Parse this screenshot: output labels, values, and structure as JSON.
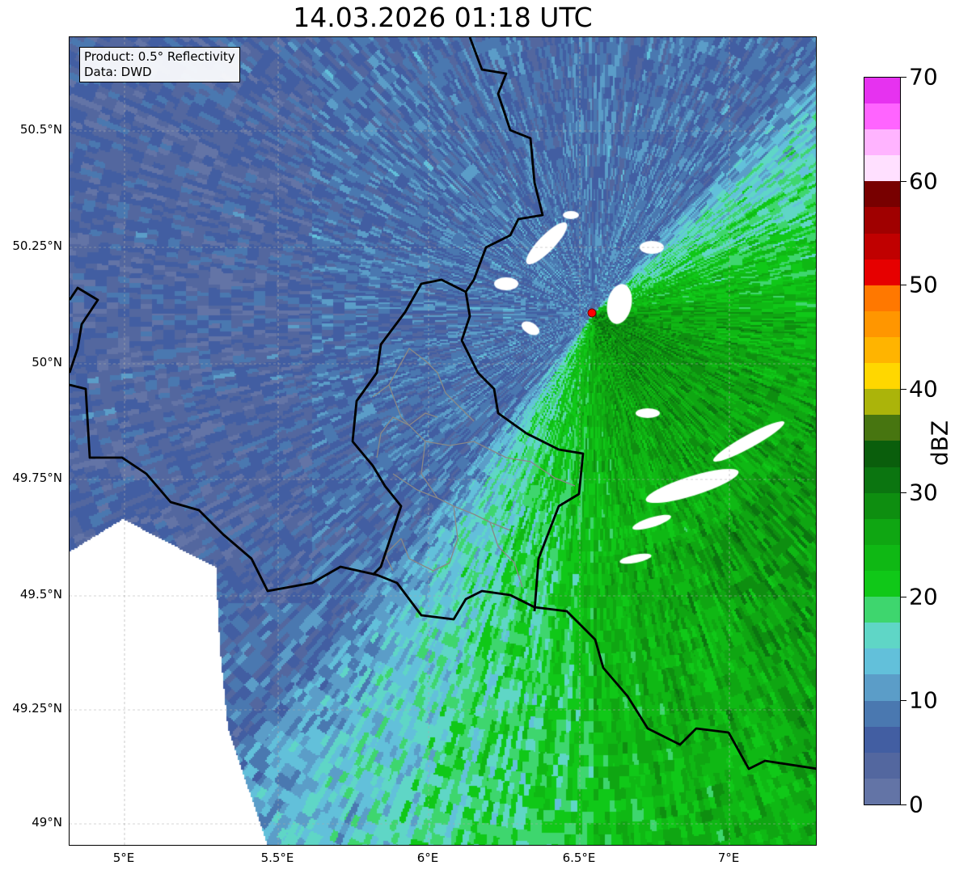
{
  "title": "14.03.2026 01:18 UTC",
  "info": {
    "line1": "Product: 0.5° Reflectivity",
    "line2": "Data: DWD"
  },
  "y_ticks": [
    "50.5°N",
    "50.25°N",
    "50°N",
    "49.75°N",
    "49.5°N",
    "49.25°N",
    "49°N"
  ],
  "x_ticks": [
    "5°E",
    "5.5°E",
    "6°E",
    "6.5°E",
    "7°E"
  ],
  "colorbar": {
    "label": "dBZ",
    "ticks": [
      "0",
      "10",
      "20",
      "30",
      "40",
      "50",
      "60",
      "70"
    ],
    "min": 0,
    "max": 70,
    "step": 2.5,
    "colors": [
      "#6374a6",
      "#53679f",
      "#425ea2",
      "#4a78b0",
      "#5b9dc8",
      "#62c0da",
      "#5fd6c6",
      "#3ed66e",
      "#10c818",
      "#0fb814",
      "#0fa612",
      "#0e8e10",
      "#0b7510",
      "#0a5e0c",
      "#477510",
      "#abb40a",
      "#ffd700",
      "#ffb400",
      "#ff9600",
      "#ff7800",
      "#e60000",
      "#c00000",
      "#a00000",
      "#780000",
      "#ffe0ff",
      "#ffb4ff",
      "#ff64ff",
      "#e632f0"
    ]
  },
  "radar_site": {
    "color": "#ff0000"
  }
}
